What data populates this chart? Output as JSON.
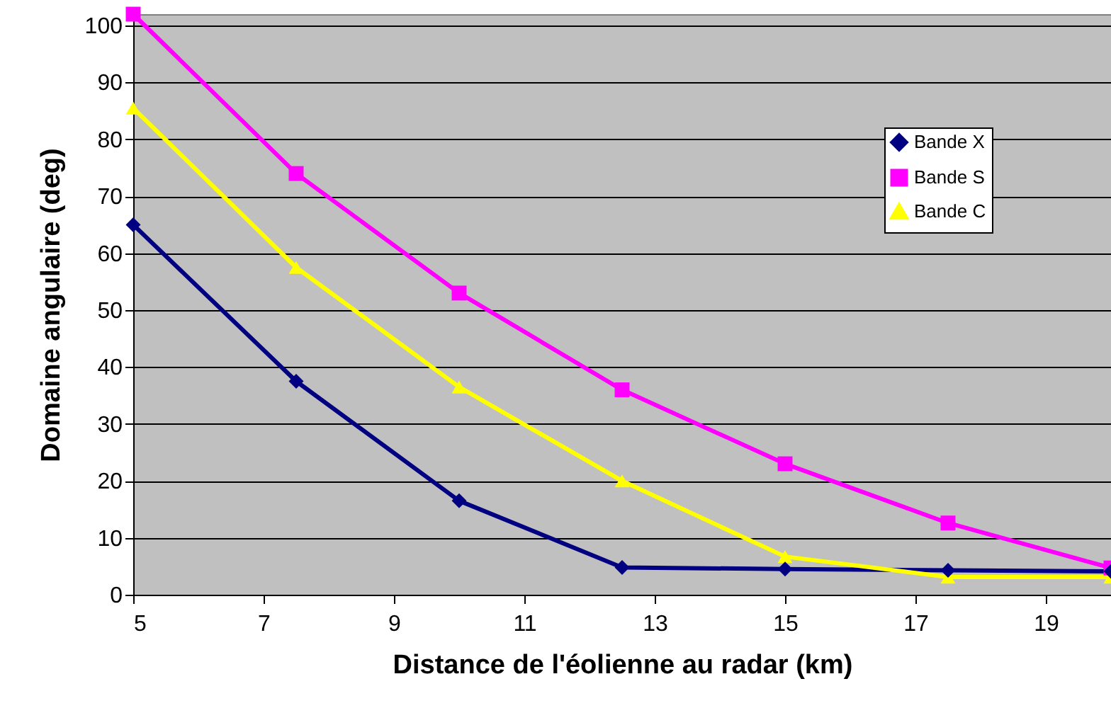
{
  "chart_data": {
    "type": "line",
    "xlabel": "Distance de l'éolienne au radar (km)",
    "ylabel": "Domaine angulaire (deg)",
    "x": [
      5,
      7.5,
      10,
      12.5,
      15,
      17.5,
      20
    ],
    "series": [
      {
        "name": "Bande X",
        "color": "#000080",
        "marker": "diamond",
        "values": [
          65,
          37.5,
          16.5,
          4.8,
          4.5,
          4.3,
          4.1
        ]
      },
      {
        "name": "Bande S",
        "color": "#ff00ff",
        "marker": "square",
        "values": [
          102,
          74,
          53,
          36,
          23,
          12.6,
          4.7
        ]
      },
      {
        "name": "Bande C",
        "color": "#ffff00",
        "marker": "triangle",
        "values": [
          85.5,
          57.5,
          36.5,
          20,
          6.7,
          3.1,
          3.1
        ]
      }
    ],
    "xlim": [
      5,
      20
    ],
    "xticks": [
      5,
      7,
      9,
      11,
      13,
      15,
      17,
      19
    ],
    "ylim": [
      0,
      102
    ],
    "yticks": [
      0,
      10,
      20,
      30,
      40,
      50,
      60,
      70,
      80,
      90,
      100
    ],
    "grid": "y",
    "legend": "top right"
  }
}
